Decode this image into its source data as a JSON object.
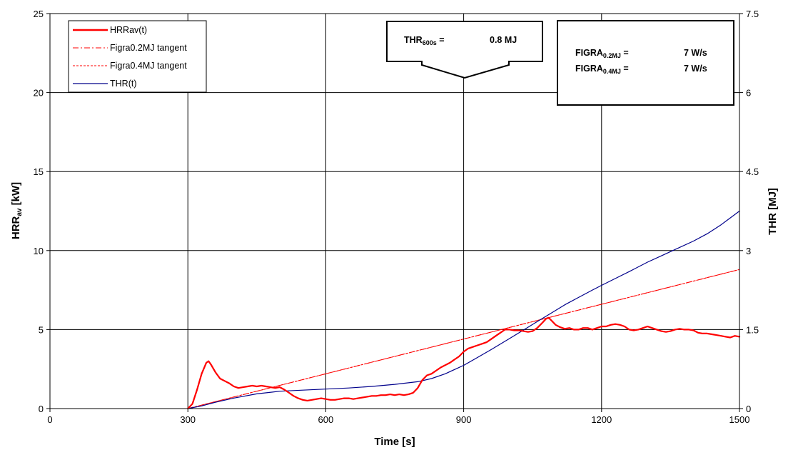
{
  "chart_data": {
    "type": "line",
    "xlabel": "Time [s]",
    "ylabel_left": "HRR",
    "ylabel_left_sub": "av",
    "ylabel_left_unit": " [kW]",
    "ylabel_right": "THR [MJ]",
    "xlim": [
      0,
      1500
    ],
    "ylim_left": [
      0,
      25
    ],
    "ylim_right": [
      0,
      7.5
    ],
    "x_ticks": [
      0,
      300,
      600,
      900,
      1200,
      1500
    ],
    "x_tick_labels": [
      "0",
      "300",
      "600",
      "900",
      "1200",
      "1500"
    ],
    "y_left_ticks": [
      0,
      5,
      10,
      15,
      20,
      25
    ],
    "y_left_tick_labels": [
      "0",
      "5",
      "10",
      "15",
      "20",
      "25"
    ],
    "y_right_ticks": [
      0,
      1.5,
      3,
      4.5,
      6,
      7.5
    ],
    "y_right_tick_labels": [
      "0",
      "1.5",
      "3",
      "4.5",
      "6",
      "7.5"
    ],
    "grid": true,
    "legend_position": "top-left",
    "series": [
      {
        "name": "HRRav(t)",
        "axis": "left",
        "color": "#ff0000",
        "style": "solid",
        "x": [
          300,
          310,
          320,
          330,
          340,
          345,
          350,
          360,
          370,
          380,
          390,
          400,
          410,
          420,
          430,
          440,
          450,
          460,
          470,
          480,
          490,
          500,
          510,
          520,
          530,
          540,
          550,
          560,
          570,
          580,
          590,
          600,
          610,
          620,
          630,
          640,
          650,
          660,
          670,
          680,
          690,
          700,
          710,
          720,
          730,
          740,
          750,
          760,
          770,
          780,
          790,
          800,
          810,
          820,
          830,
          840,
          850,
          860,
          870,
          880,
          890,
          900,
          910,
          920,
          930,
          940,
          950,
          960,
          970,
          980,
          990,
          1000,
          1010,
          1020,
          1030,
          1040,
          1050,
          1060,
          1070,
          1080,
          1085,
          1090,
          1100,
          1110,
          1120,
          1130,
          1140,
          1150,
          1160,
          1170,
          1180,
          1190,
          1200,
          1210,
          1220,
          1230,
          1240,
          1250,
          1260,
          1270,
          1280,
          1290,
          1300,
          1310,
          1320,
          1330,
          1340,
          1350,
          1360,
          1370,
          1380,
          1390,
          1400,
          1410,
          1420,
          1430,
          1440,
          1450,
          1460,
          1470,
          1480,
          1490,
          1500
        ],
        "values": [
          0,
          0.3,
          1.2,
          2.2,
          2.9,
          3.0,
          2.8,
          2.3,
          1.9,
          1.75,
          1.6,
          1.4,
          1.3,
          1.35,
          1.4,
          1.45,
          1.4,
          1.45,
          1.4,
          1.35,
          1.3,
          1.35,
          1.2,
          1.0,
          0.8,
          0.65,
          0.55,
          0.5,
          0.55,
          0.6,
          0.65,
          0.6,
          0.55,
          0.55,
          0.6,
          0.65,
          0.65,
          0.6,
          0.65,
          0.7,
          0.75,
          0.8,
          0.8,
          0.85,
          0.85,
          0.9,
          0.85,
          0.9,
          0.85,
          0.9,
          1.0,
          1.3,
          1.8,
          2.1,
          2.2,
          2.4,
          2.6,
          2.75,
          2.9,
          3.1,
          3.3,
          3.6,
          3.8,
          3.9,
          4.0,
          4.1,
          4.2,
          4.4,
          4.6,
          4.8,
          5.0,
          5.0,
          4.95,
          4.95,
          4.9,
          4.85,
          4.9,
          5.1,
          5.4,
          5.7,
          5.75,
          5.6,
          5.3,
          5.15,
          5.05,
          5.1,
          5.0,
          5.0,
          5.1,
          5.1,
          5.0,
          5.1,
          5.2,
          5.2,
          5.3,
          5.35,
          5.3,
          5.2,
          5.0,
          4.95,
          5.0,
          5.1,
          5.2,
          5.1,
          5.0,
          4.9,
          4.85,
          4.9,
          5.0,
          5.05,
          5.0,
          5.0,
          4.95,
          4.8,
          4.75,
          4.75,
          4.7,
          4.65,
          4.6,
          4.55,
          4.5,
          4.6,
          4.55
        ]
      },
      {
        "name": "Figra0.2MJ tangent",
        "axis": "left",
        "color": "#ff0000",
        "style": "dash-dot",
        "x": [
          300,
          1500
        ],
        "values": [
          0,
          8.8
        ]
      },
      {
        "name": "Figra0.4MJ tangent",
        "axis": "left",
        "color": "#ff0000",
        "style": "dotted",
        "x": [
          300,
          1500
        ],
        "values": [
          0,
          8.8
        ]
      },
      {
        "name": "THR(t)",
        "axis": "right",
        "color": "#00008b",
        "style": "solid",
        "x": [
          300,
          330,
          360,
          400,
          450,
          500,
          550,
          600,
          650,
          700,
          750,
          800,
          830,
          860,
          900,
          930,
          960,
          1000,
          1030,
          1060,
          1090,
          1120,
          1150,
          1180,
          1200,
          1230,
          1260,
          1300,
          1330,
          1360,
          1400,
          1430,
          1460,
          1500
        ],
        "values": [
          0,
          0.05,
          0.12,
          0.2,
          0.28,
          0.33,
          0.35,
          0.37,
          0.39,
          0.42,
          0.46,
          0.51,
          0.57,
          0.66,
          0.82,
          0.97,
          1.12,
          1.33,
          1.49,
          1.65,
          1.81,
          1.97,
          2.11,
          2.25,
          2.34,
          2.47,
          2.6,
          2.78,
          2.9,
          3.02,
          3.18,
          3.32,
          3.49,
          3.75
        ]
      }
    ],
    "annotations": {
      "thr_label": "THR",
      "thr_sub": "600s",
      "thr_eq": " =",
      "thr_value": "0.8  MJ",
      "figra1_label": "FIGRA",
      "figra1_sub": "0.2MJ",
      "figra1_eq": " =",
      "figra1_value": "7  W/s",
      "figra2_label": "FIGRA",
      "figra2_sub": "0.4MJ",
      "figra2_eq": " =",
      "figra2_value": "7  W/s"
    }
  }
}
